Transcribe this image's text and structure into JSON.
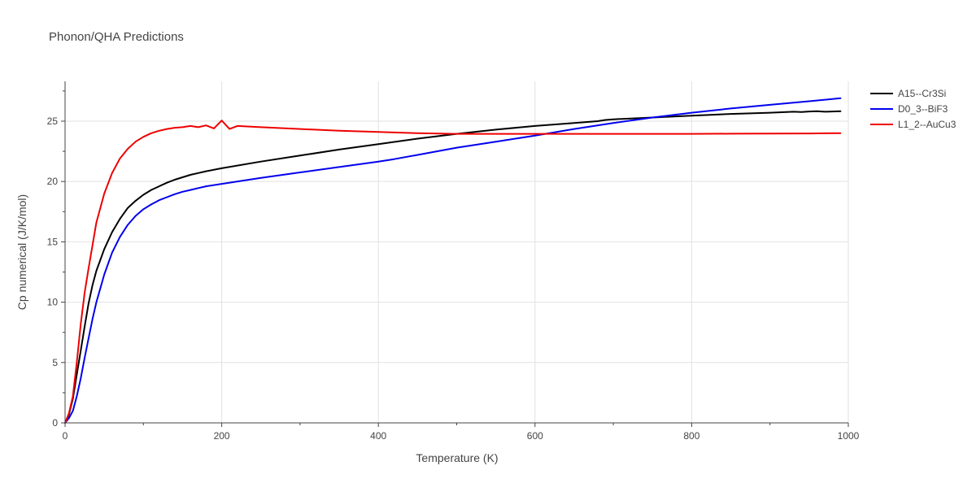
{
  "chart_data": {
    "type": "line",
    "title": "Phonon/QHA Predictions",
    "xlabel": "Temperature (K)",
    "ylabel": "Cp numerical (J/K/mol)",
    "xlim": [
      0,
      1000
    ],
    "ylim": [
      0,
      28.3
    ],
    "x_ticks": [
      0,
      200,
      400,
      600,
      800,
      1000
    ],
    "y_ticks": [
      0,
      5,
      10,
      15,
      20,
      25
    ],
    "x_tick_labels": [
      "0",
      "200",
      "400",
      "600",
      "800",
      "1000"
    ],
    "y_tick_labels": [
      "0",
      "5",
      "10",
      "15",
      "20",
      "25"
    ],
    "grid": true,
    "legend_position": "top-right outside",
    "series": [
      {
        "name": "A15--Cr3Si",
        "color": "#000000",
        "x": [
          0,
          5,
          10,
          15,
          20,
          25,
          30,
          35,
          40,
          50,
          60,
          70,
          80,
          90,
          100,
          110,
          120,
          130,
          140,
          150,
          160,
          170,
          180,
          200,
          250,
          300,
          350,
          400,
          450,
          500,
          550,
          600,
          650,
          680,
          690,
          700,
          750,
          800,
          850,
          900,
          930,
          940,
          950,
          960,
          970,
          990
        ],
        "y": [
          0,
          0.7,
          2.0,
          4.0,
          6.0,
          8.0,
          9.9,
          11.4,
          12.6,
          14.4,
          15.8,
          16.9,
          17.8,
          18.4,
          18.9,
          19.3,
          19.6,
          19.9,
          20.15,
          20.35,
          20.55,
          20.7,
          20.85,
          21.1,
          21.65,
          22.15,
          22.65,
          23.1,
          23.55,
          23.95,
          24.3,
          24.6,
          24.85,
          25.0,
          25.1,
          25.15,
          25.3,
          25.45,
          25.6,
          25.7,
          25.78,
          25.75,
          25.8,
          25.82,
          25.78,
          25.82
        ]
      },
      {
        "name": "D0_3--BiF3",
        "color": "#0000ee",
        "x": [
          0,
          5,
          10,
          15,
          20,
          25,
          30,
          35,
          40,
          50,
          60,
          70,
          80,
          90,
          100,
          110,
          120,
          130,
          140,
          150,
          160,
          170,
          180,
          200,
          250,
          300,
          350,
          400,
          420,
          450,
          500,
          550,
          600,
          650,
          700,
          750,
          800,
          850,
          900,
          950,
          990
        ],
        "y": [
          0,
          0.4,
          1.0,
          2.2,
          3.7,
          5.4,
          7.0,
          8.6,
          10.0,
          12.3,
          14.1,
          15.4,
          16.4,
          17.15,
          17.7,
          18.1,
          18.45,
          18.7,
          18.95,
          19.15,
          19.3,
          19.45,
          19.6,
          19.8,
          20.3,
          20.75,
          21.2,
          21.65,
          21.85,
          22.2,
          22.8,
          23.3,
          23.8,
          24.35,
          24.85,
          25.3,
          25.7,
          26.05,
          26.35,
          26.65,
          26.9
        ]
      },
      {
        "name": "L1_2--AuCu3",
        "color": "#ee0000",
        "x": [
          0,
          5,
          10,
          15,
          20,
          25,
          30,
          40,
          50,
          60,
          70,
          80,
          90,
          100,
          110,
          120,
          130,
          140,
          150,
          160,
          170,
          180,
          190,
          200,
          210,
          220,
          250,
          300,
          350,
          400,
          450,
          500,
          550,
          600,
          650,
          700,
          750,
          800,
          850,
          900,
          950,
          990
        ],
        "y": [
          0,
          0.8,
          2.2,
          5.0,
          8.2,
          10.8,
          12.8,
          16.6,
          19.0,
          20.7,
          21.9,
          22.7,
          23.3,
          23.7,
          24.0,
          24.2,
          24.35,
          24.45,
          24.5,
          24.6,
          24.5,
          24.65,
          24.4,
          25.05,
          24.35,
          24.6,
          24.5,
          24.35,
          24.2,
          24.1,
          24.0,
          23.95,
          23.95,
          23.95,
          23.95,
          23.95,
          23.95,
          23.95,
          23.96,
          23.97,
          23.98,
          24.0
        ]
      }
    ]
  }
}
